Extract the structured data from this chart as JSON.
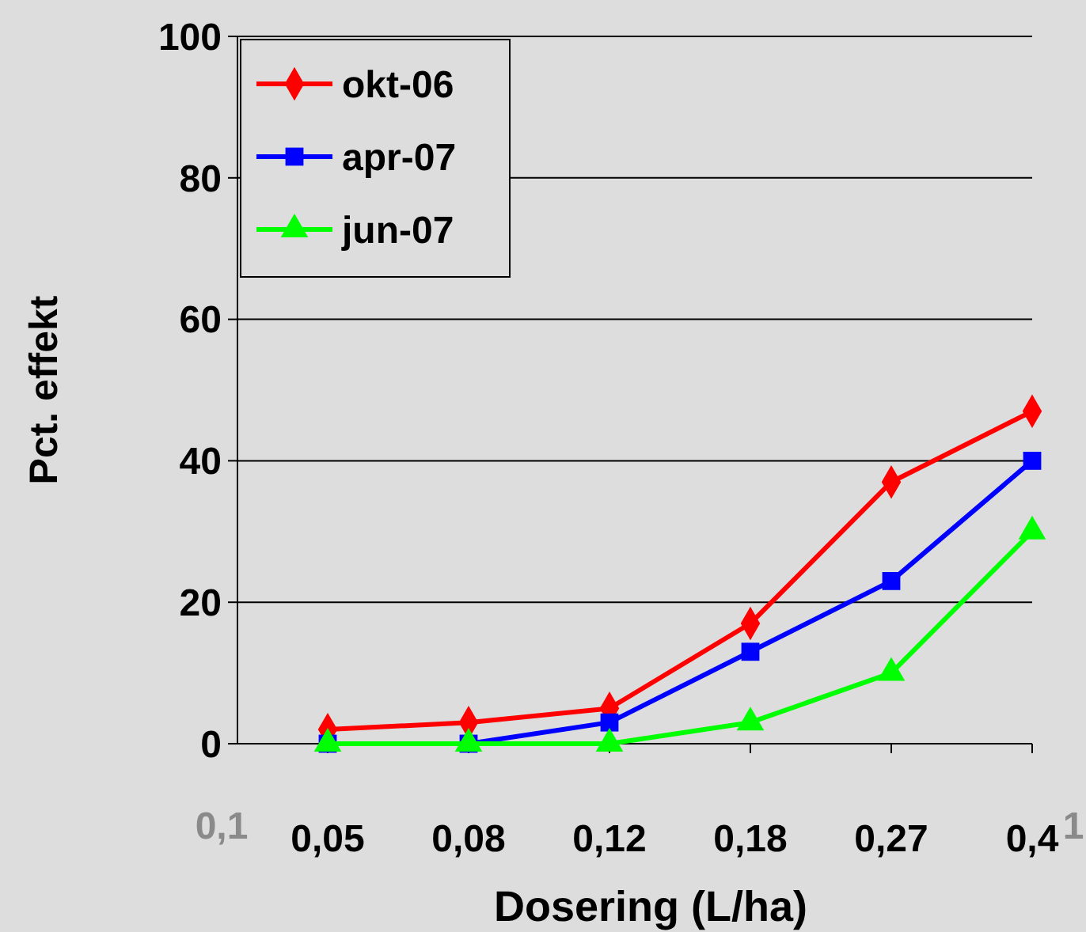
{
  "chart_data": {
    "type": "line",
    "xlabel": "Dosering (L/ha)",
    "ylabel": "Pct. effekt",
    "categories": [
      "0,05",
      "0,08",
      "0,12",
      "0,18",
      "0,27",
      "0,4"
    ],
    "series": [
      {
        "name": "okt-06",
        "color": "#ff0000",
        "values": [
          2,
          3,
          5,
          17,
          37,
          47
        ],
        "marker": "diamond"
      },
      {
        "name": "apr-07",
        "color": "#0000ff",
        "values": [
          0,
          0,
          3,
          13,
          23,
          40
        ],
        "marker": "square"
      },
      {
        "name": "jun-07",
        "color": "#00ff00",
        "values": [
          0,
          0,
          0,
          3,
          10,
          30
        ],
        "marker": "triangle"
      }
    ],
    "ylim": [
      0,
      100
    ],
    "yticks": [
      0,
      20,
      40,
      60,
      80,
      100
    ],
    "grid": "y",
    "legend": "top left",
    "line_style": "solid",
    "annotations": [
      "0,1",
      "1"
    ]
  }
}
